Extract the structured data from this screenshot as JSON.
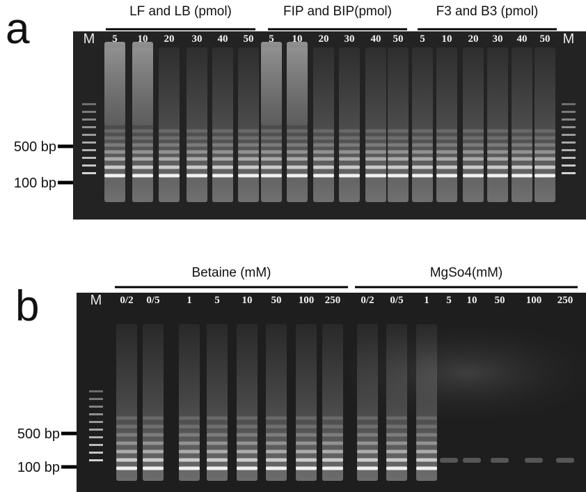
{
  "panels": [
    {
      "letter": "a",
      "groups": [
        {
          "label": "LF and LB (pmol)",
          "lanes": [
            "5",
            "10",
            "20",
            "30",
            "40",
            "50"
          ]
        },
        {
          "label": "FIP and BIP(pmol)",
          "lanes": [
            "5",
            "10",
            "20",
            "30",
            "40",
            "50"
          ]
        },
        {
          "label": "F3 and B3 (pmol)",
          "lanes": [
            "5",
            "10",
            "20",
            "30",
            "40",
            "50"
          ]
        }
      ],
      "markers": [
        "M",
        "M"
      ],
      "size_markers": [
        "500 bp",
        "100 bp"
      ]
    },
    {
      "letter": "b",
      "groups": [
        {
          "label": "Betaine (mM)",
          "lanes": [
            "0/2",
            "0/5",
            "1",
            "5",
            "10",
            "50",
            "100",
            "250"
          ]
        },
        {
          "label": "MgSo4(mM)",
          "lanes": [
            "0/2",
            "0/5",
            "1",
            "5",
            "10",
            "50",
            "100",
            "250"
          ]
        }
      ],
      "markers": [
        "M"
      ],
      "size_markers": [
        "500 bp",
        "100 bp"
      ]
    }
  ]
}
